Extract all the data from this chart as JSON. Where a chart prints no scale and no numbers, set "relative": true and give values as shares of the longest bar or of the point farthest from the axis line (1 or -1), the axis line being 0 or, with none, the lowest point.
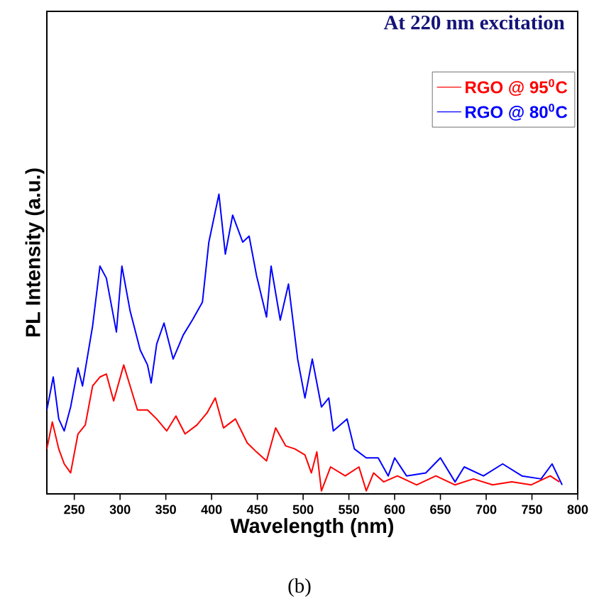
{
  "chart_data": {
    "type": "line",
    "title": "At 220 nm excitation",
    "xlabel": "Wavelength (nm)",
    "ylabel": "PL Intensity (a.u.)",
    "relative": true,
    "xlim": [
      220,
      800
    ],
    "xticks": [
      250,
      300,
      350,
      400,
      450,
      500,
      550,
      600,
      650,
      700,
      750,
      800
    ],
    "legend": "top right",
    "marker": "none",
    "line_style": "solid",
    "annotations": [
      "(b)"
    ],
    "series": [
      {
        "name": "RGO @ 95$^{0}$C",
        "color": "#ff0000",
        "x": [
          220,
          226,
          233,
          239,
          246,
          254,
          262,
          270,
          278,
          285,
          293,
          304,
          311,
          319,
          330,
          340,
          351,
          361,
          371,
          384,
          395,
          404,
          413,
          426,
          439,
          449,
          460,
          470,
          481,
          491,
          502,
          509,
          515,
          520,
          530,
          546,
          561,
          569,
          577,
          588,
          603,
          624,
          645,
          666,
          686,
          707,
          728,
          749,
          770,
          780
        ],
        "values": [
          0.15,
          0.24,
          0.15,
          0.1,
          0.07,
          0.2,
          0.23,
          0.36,
          0.39,
          0.4,
          0.31,
          0.43,
          0.36,
          0.28,
          0.28,
          0.25,
          0.21,
          0.26,
          0.2,
          0.23,
          0.27,
          0.32,
          0.22,
          0.25,
          0.17,
          0.14,
          0.11,
          0.22,
          0.16,
          0.15,
          0.13,
          0.07,
          0.14,
          0.01,
          0.09,
          0.06,
          0.09,
          0.01,
          0.07,
          0.04,
          0.06,
          0.03,
          0.06,
          0.03,
          0.05,
          0.03,
          0.04,
          0.03,
          0.06,
          0.04
        ]
      },
      {
        "name": "RGO @ 80$^{0}$C",
        "color": "#0000ff",
        "x": [
          220,
          227,
          233,
          239,
          246,
          254,
          259,
          270,
          278,
          285,
          296,
          302,
          311,
          322,
          330,
          334,
          340,
          348,
          358,
          369,
          379,
          390,
          397,
          408,
          415,
          423,
          434,
          441,
          449,
          460,
          465,
          475,
          484,
          494,
          502,
          510,
          520,
          528,
          533,
          548,
          556,
          569,
          582,
          593,
          600,
          613,
          634,
          650,
          666,
          676,
          697,
          718,
          739,
          760,
          772,
          783
        ],
        "values": [
          0.28,
          0.39,
          0.25,
          0.21,
          0.29,
          0.42,
          0.36,
          0.56,
          0.76,
          0.72,
          0.54,
          0.76,
          0.61,
          0.48,
          0.43,
          0.37,
          0.5,
          0.57,
          0.45,
          0.53,
          0.58,
          0.64,
          0.84,
          1.0,
          0.8,
          0.93,
          0.84,
          0.86,
          0.73,
          0.59,
          0.76,
          0.58,
          0.7,
          0.45,
          0.32,
          0.45,
          0.29,
          0.32,
          0.21,
          0.25,
          0.15,
          0.12,
          0.12,
          0.06,
          0.12,
          0.06,
          0.07,
          0.12,
          0.04,
          0.09,
          0.06,
          0.1,
          0.06,
          0.05,
          0.1,
          0.03
        ]
      }
    ]
  }
}
